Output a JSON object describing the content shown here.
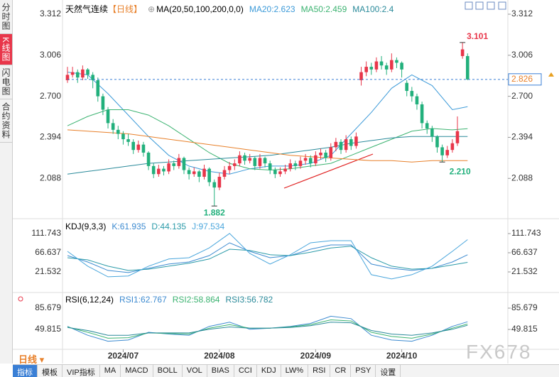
{
  "sidebar": [
    "分时图",
    "K线图",
    "闪电图",
    "合约资料"
  ],
  "chart_data": [
    {
      "type": "candlestick",
      "title": "天然气连续",
      "period": "【日线】",
      "indicator": "MA(20,50,100,200,0,0)",
      "categories": [
        null,
        null,
        null,
        null,
        null,
        null,
        null,
        null,
        null,
        null,
        null,
        "2024/07",
        null,
        null,
        null,
        null,
        null,
        null,
        null,
        null,
        null,
        null,
        null,
        null,
        null,
        null,
        null,
        null,
        null,
        null,
        "2024/08",
        null,
        null,
        null,
        null,
        null,
        null,
        null,
        null,
        null,
        null,
        null,
        null,
        null,
        null,
        null,
        null,
        null,
        null,
        "2024/09",
        null,
        null,
        null,
        null,
        null,
        null,
        null,
        null,
        null,
        null,
        null,
        null,
        null,
        null,
        null,
        null,
        "2024/10",
        null,
        null,
        null,
        null,
        null,
        null,
        null,
        null,
        null,
        null,
        null,
        null,
        null
      ],
      "open": [
        2.82,
        2.86,
        2.88,
        2.84,
        2.9,
        2.86,
        2.82,
        2.7,
        2.6,
        2.5,
        2.45,
        2.42,
        2.38,
        2.36,
        2.3,
        2.34,
        2.28,
        2.18,
        2.12,
        2.16,
        2.14,
        2.2,
        2.18,
        2.24,
        2.15,
        2.12,
        2.14,
        2.1,
        2.16,
        2.06,
        2.02,
        2.1,
        2.15,
        2.18,
        2.2,
        2.26,
        2.22,
        2.24,
        2.18,
        2.24,
        2.2,
        2.15,
        2.12,
        2.14,
        2.16,
        2.2,
        2.18,
        2.22,
        2.24,
        2.2,
        2.26,
        2.28,
        2.24,
        2.32,
        2.36,
        2.3,
        2.38,
        2.33,
        2.82,
        2.88,
        2.92,
        2.9,
        2.96,
        2.93,
        2.9,
        2.97,
        2.95,
        2.8,
        2.74,
        2.7,
        2.64,
        2.5,
        2.46,
        2.4,
        2.32,
        2.26,
        2.3,
        2.35,
        3.0,
        3.0
      ],
      "high": [
        2.92,
        2.92,
        2.9,
        2.93,
        2.91,
        2.88,
        2.84,
        2.72,
        2.62,
        2.53,
        2.48,
        2.44,
        2.42,
        2.38,
        2.37,
        2.36,
        2.29,
        2.2,
        2.19,
        2.18,
        2.23,
        2.22,
        2.27,
        2.25,
        2.17,
        2.17,
        2.15,
        2.19,
        2.17,
        2.08,
        2.13,
        2.18,
        2.21,
        2.23,
        2.29,
        2.28,
        2.27,
        2.25,
        2.27,
        2.25,
        2.22,
        2.17,
        2.17,
        2.19,
        2.23,
        2.22,
        2.25,
        2.27,
        2.26,
        2.29,
        2.31,
        2.3,
        2.35,
        2.39,
        2.38,
        2.41,
        2.4,
        2.43,
        2.92,
        2.96,
        2.95,
        2.99,
        3.0,
        2.95,
        3.02,
        2.99,
        2.96,
        2.82,
        2.77,
        2.72,
        2.66,
        2.52,
        2.48,
        2.41,
        2.34,
        2.33,
        2.38,
        2.55,
        3.101,
        3.02
      ],
      "low": [
        2.8,
        2.84,
        2.8,
        2.82,
        2.83,
        2.76,
        2.66,
        2.56,
        2.46,
        2.42,
        2.38,
        2.34,
        2.33,
        2.27,
        2.28,
        2.25,
        2.15,
        2.09,
        2.1,
        2.11,
        2.12,
        2.15,
        2.16,
        2.12,
        2.08,
        2.1,
        2.06,
        2.08,
        2.03,
        1.882,
        2.0,
        2.08,
        2.12,
        2.15,
        2.18,
        2.19,
        2.2,
        2.15,
        2.16,
        2.17,
        2.12,
        2.09,
        2.1,
        2.12,
        2.14,
        2.15,
        2.16,
        2.19,
        2.17,
        2.18,
        2.23,
        2.21,
        2.22,
        2.29,
        2.27,
        2.28,
        2.3,
        2.31,
        2.78,
        2.85,
        2.86,
        2.88,
        2.9,
        2.86,
        2.88,
        2.91,
        2.84,
        2.7,
        2.66,
        2.6,
        2.46,
        2.42,
        2.36,
        2.28,
        2.21,
        2.24,
        2.28,
        2.33,
        2.98,
        2.82
      ],
      "close": [
        2.86,
        2.88,
        2.84,
        2.9,
        2.86,
        2.82,
        2.7,
        2.6,
        2.5,
        2.45,
        2.42,
        2.38,
        2.36,
        2.3,
        2.34,
        2.28,
        2.18,
        2.12,
        2.16,
        2.14,
        2.2,
        2.18,
        2.24,
        2.15,
        2.12,
        2.14,
        2.1,
        2.16,
        2.06,
        2.02,
        2.1,
        2.15,
        2.18,
        2.2,
        2.26,
        2.22,
        2.24,
        2.18,
        2.24,
        2.2,
        2.15,
        2.12,
        2.14,
        2.16,
        2.2,
        2.18,
        2.22,
        2.24,
        2.2,
        2.26,
        2.28,
        2.24,
        2.32,
        2.36,
        2.3,
        2.38,
        2.33,
        2.4,
        2.88,
        2.92,
        2.9,
        2.96,
        2.93,
        2.9,
        2.97,
        2.95,
        2.9,
        2.74,
        2.7,
        2.64,
        2.5,
        2.46,
        2.4,
        2.32,
        2.26,
        2.3,
        2.35,
        2.44,
        3.05,
        2.826
      ],
      "up_color": "#e8364a",
      "down_color": "#22b07c",
      "ylim": [
        1.83,
        3.365
      ],
      "yticks": [
        3.312,
        3.006,
        {
          "value": 2.7,
          "label": "2.700"
        },
        2.394,
        2.088
      ],
      "x": [
        0,
        4,
        8,
        12,
        16,
        20,
        24,
        28,
        32,
        36,
        40,
        44,
        48,
        52,
        56,
        60,
        64,
        68,
        72,
        76,
        79
      ],
      "series": [
        {
          "name": "MA20:2.623",
          "color": "#3c9ad8",
          "values": [
            2.88,
            2.86,
            2.72,
            2.56,
            2.4,
            2.26,
            2.18,
            2.14,
            2.12,
            2.16,
            2.18,
            2.18,
            2.2,
            2.26,
            2.42,
            2.58,
            2.76,
            2.86,
            2.78,
            2.6,
            2.623
          ]
        },
        {
          "name": "MA50:2.459",
          "color": "#3cb371",
          "values": [
            2.48,
            2.55,
            2.6,
            2.6,
            2.56,
            2.48,
            2.38,
            2.28,
            2.2,
            2.16,
            2.15,
            2.16,
            2.18,
            2.2,
            2.26,
            2.32,
            2.38,
            2.44,
            2.46,
            2.45,
            2.459
          ]
        },
        {
          "name": "MA100:2.4",
          "color": "#2a8a9a",
          "values": [
            2.12,
            2.14,
            2.16,
            2.18,
            2.2,
            2.21,
            2.22,
            2.23,
            2.24,
            2.25,
            2.26,
            2.28,
            2.3,
            2.32,
            2.35,
            2.37,
            2.39,
            2.4,
            2.4,
            2.4,
            2.4
          ]
        },
        {
          "color": "#e8802a",
          "values": [
            2.45,
            2.44,
            2.43,
            2.42,
            2.4,
            2.38,
            2.36,
            2.34,
            2.32,
            2.3,
            2.28,
            2.26,
            2.25,
            2.24,
            2.23,
            2.22,
            2.22,
            2.21,
            2.22,
            2.22,
            2.22
          ]
        }
      ],
      "last_price": 2.826,
      "annotations": [
        {
          "x": 78,
          "value": 3.101,
          "color": "#e8364a"
        },
        {
          "x": 74,
          "value": 2.21,
          "label": "2.210",
          "color": "#22b07c"
        },
        {
          "x": 29,
          "value": 1.882,
          "color": "#22b07c"
        }
      ]
    },
    {
      "type": "line",
      "title": "KDJ(9,3,3)",
      "ylim": [
        -23.57,
        135.13
      ],
      "yticks": [
        111.743,
        66.637,
        21.532
      ],
      "x": [
        0,
        4,
        8,
        12,
        16,
        20,
        24,
        28,
        32,
        36,
        40,
        44,
        48,
        52,
        56,
        60,
        64,
        68,
        72,
        76,
        79
      ],
      "series": [
        {
          "name": "K:61.935",
          "color": "#3c8ad0",
          "values": [
            60,
            45,
            25,
            20,
            30,
            40,
            45,
            60,
            90,
            70,
            55,
            60,
            75,
            85,
            85,
            40,
            30,
            25,
            30,
            45,
            61.935
          ]
        },
        {
          "name": "D:44.135",
          "color": "#2a9aa8",
          "values": [
            55,
            50,
            35,
            25,
            28,
            35,
            42,
            52,
            75,
            72,
            62,
            60,
            68,
            78,
            82,
            55,
            35,
            28,
            30,
            38,
            44.135
          ]
        },
        {
          "name": "J:97.534",
          "color": "#4aa6dc",
          "values": [
            70,
            35,
            10,
            12,
            35,
            52,
            55,
            78,
            112,
            65,
            40,
            62,
            90,
            95,
            95,
            15,
            5,
            15,
            35,
            70,
            97.534
          ]
        }
      ]
    },
    {
      "type": "line",
      "title": "RSI(6,12,24)",
      "ylim": [
        12.75,
        104.81
      ],
      "yticks": [
        85.679,
        49.815
      ],
      "x": [
        0,
        4,
        8,
        12,
        16,
        20,
        24,
        28,
        32,
        36,
        40,
        44,
        48,
        52,
        56,
        60,
        64,
        68,
        72,
        76,
        79
      ],
      "series": [
        {
          "name": "RSI1:62.767",
          "color": "#3c8ad0",
          "values": [
            55,
            40,
            30,
            32,
            45,
            42,
            40,
            55,
            62,
            50,
            52,
            55,
            60,
            72,
            68,
            40,
            32,
            30,
            40,
            55,
            62.767
          ]
        },
        {
          "name": "RSI2:58.864",
          "color": "#3cb371",
          "values": [
            54,
            45,
            35,
            36,
            44,
            43,
            42,
            52,
            58,
            52,
            52,
            54,
            58,
            66,
            64,
            45,
            38,
            35,
            42,
            52,
            58.864
          ]
        },
        {
          "name": "RSI3:56.782",
          "color": "#2a8a9a",
          "values": [
            53,
            48,
            40,
            40,
            44,
            44,
            44,
            50,
            54,
            52,
            52,
            53,
            56,
            62,
            61,
            48,
            42,
            40,
            44,
            50,
            56.782
          ]
        }
      ]
    }
  ],
  "period_selector": "日线",
  "toolbar": [
    "指标",
    "模板",
    "VIP指标",
    "MA",
    "MACD",
    "BOLL",
    "VOL",
    "BIAS",
    "CCI",
    "KDJ",
    "LW%",
    "RSI",
    "CR",
    "PSY",
    "设置"
  ],
  "watermark": "FX678"
}
